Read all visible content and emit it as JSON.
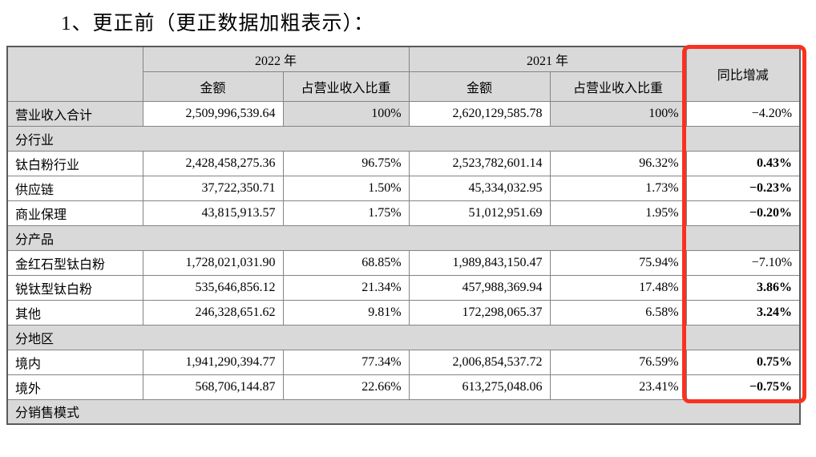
{
  "title": "1、更正前（更正数据加粗表示）：",
  "colors": {
    "highlight_red": "#f93122",
    "shade_gray": "#d9d9d9"
  },
  "table": {
    "headers": {
      "year_2022": "2022 年",
      "year_2021": "2021 年",
      "amount": "金额",
      "ratio": "占营业收入比重",
      "yoy": "同比增减"
    },
    "rows": [
      {
        "type": "data",
        "label": "营业收入合计",
        "amount_2022": "2,509,996,539.64",
        "ratio_2022": "100%",
        "amount_2021": "2,620,129,585.78",
        "ratio_2021": "100%",
        "yoy": "−4.20%",
        "yoy_bold": false,
        "shaded_label": true,
        "shaded_ratio": true
      },
      {
        "type": "section",
        "label": "分行业"
      },
      {
        "type": "data",
        "label": "钛白粉行业",
        "amount_2022": "2,428,458,275.36",
        "ratio_2022": "96.75%",
        "amount_2021": "2,523,782,601.14",
        "ratio_2021": "96.32%",
        "yoy": "0.43%",
        "yoy_bold": true
      },
      {
        "type": "data",
        "label": "供应链",
        "amount_2022": "37,722,350.71",
        "ratio_2022": "1.50%",
        "amount_2021": "45,334,032.95",
        "ratio_2021": "1.73%",
        "yoy": "−0.23%",
        "yoy_bold": true
      },
      {
        "type": "data",
        "label": "商业保理",
        "amount_2022": "43,815,913.57",
        "ratio_2022": "1.75%",
        "amount_2021": "51,012,951.69",
        "ratio_2021": "1.95%",
        "yoy": "−0.20%",
        "yoy_bold": true
      },
      {
        "type": "section",
        "label": "分产品"
      },
      {
        "type": "data",
        "label": "金红石型钛白粉",
        "amount_2022": "1,728,021,031.90",
        "ratio_2022": "68.85%",
        "amount_2021": "1,989,843,150.47",
        "ratio_2021": "75.94%",
        "yoy": "−7.10%",
        "yoy_bold": false
      },
      {
        "type": "data",
        "label": "锐钛型钛白粉",
        "amount_2022": "535,646,856.12",
        "ratio_2022": "21.34%",
        "amount_2021": "457,988,369.94",
        "ratio_2021": "17.48%",
        "yoy": "3.86%",
        "yoy_bold": true
      },
      {
        "type": "data",
        "label": "其他",
        "amount_2022": "246,328,651.62",
        "ratio_2022": "9.81%",
        "amount_2021": "172,298,065.37",
        "ratio_2021": "6.58%",
        "yoy": "3.24%",
        "yoy_bold": true
      },
      {
        "type": "section",
        "label": "分地区"
      },
      {
        "type": "data",
        "label": "境内",
        "amount_2022": "1,941,290,394.77",
        "ratio_2022": "77.34%",
        "amount_2021": "2,006,854,537.72",
        "ratio_2021": "76.59%",
        "yoy": "0.75%",
        "yoy_bold": true
      },
      {
        "type": "data",
        "label": "境外",
        "amount_2022": "568,706,144.87",
        "ratio_2022": "22.66%",
        "amount_2021": "613,275,048.06",
        "ratio_2021": "23.41%",
        "yoy": "−0.75%",
        "yoy_bold": true
      },
      {
        "type": "section",
        "label": "分销售模式"
      }
    ],
    "annotation": {
      "type": "red-highlight-box",
      "column": "同比增减",
      "last_row": "境外"
    }
  }
}
